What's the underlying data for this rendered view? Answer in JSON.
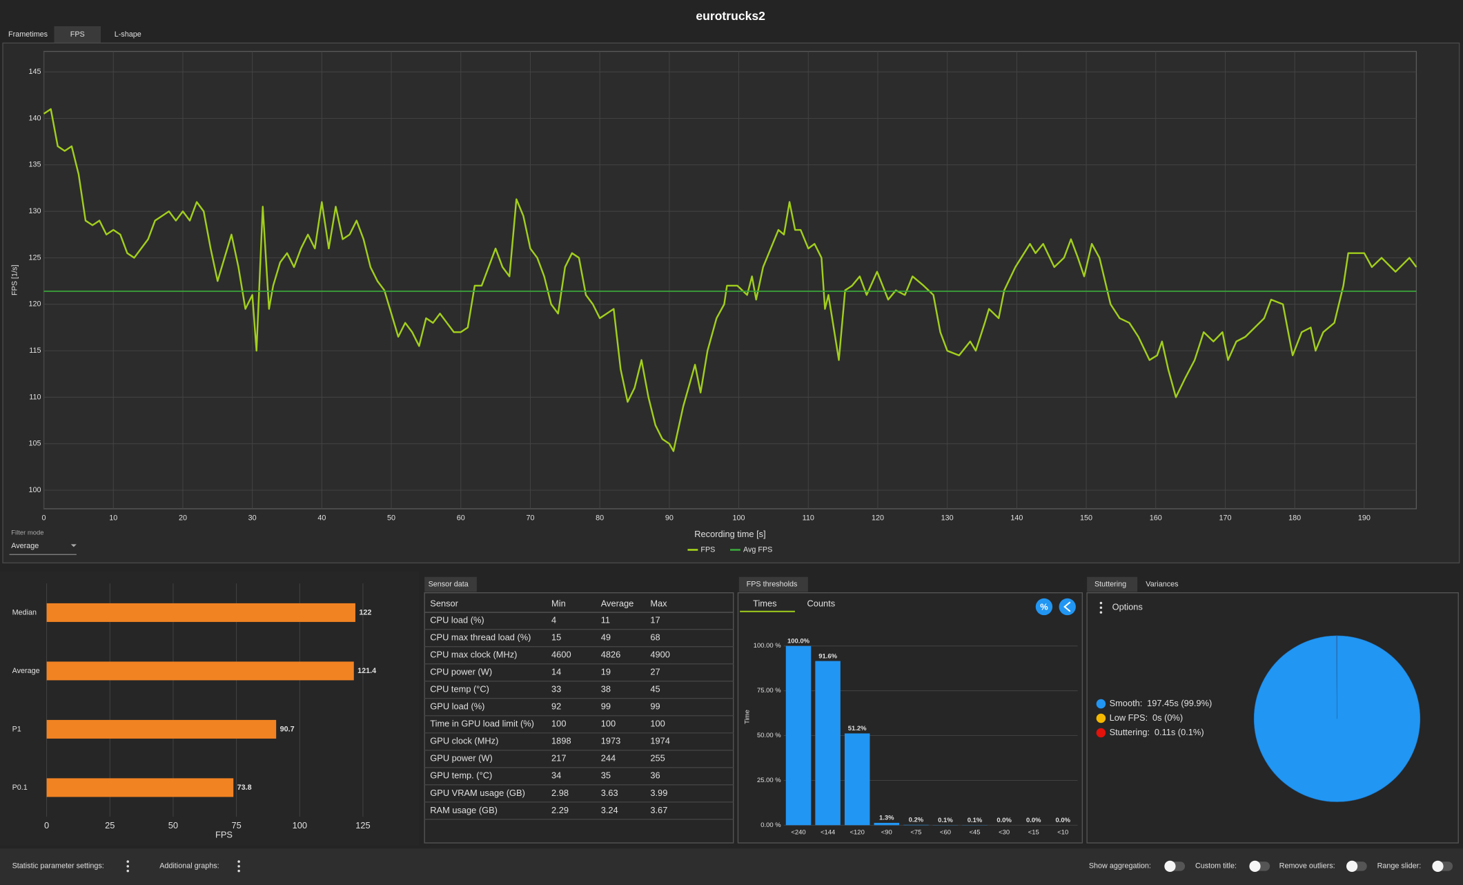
{
  "app": {
    "title": "eurotrucks2",
    "tabs": [
      "Frametimes",
      "FPS",
      "L-shape"
    ],
    "filter_label": "Filter mode",
    "filter_value": "Average",
    "panels": {
      "sensor": "Sensor data",
      "thresholds": "FPS thresholds",
      "stuttering": "Stuttering",
      "variances": "Variances",
      "options": "Options",
      "times": "Times",
      "counts": "Counts",
      "percent": "%"
    },
    "footer": [
      "Statistic parameter settings:",
      "Additional graphs:",
      "Show aggregation:",
      "Custom title:",
      "Remove outliers:",
      "Range slider:"
    ]
  },
  "chart_data": [
    {
      "type": "line",
      "xlabel": "Recording time [s]",
      "ylabel": "FPS [1/s]",
      "x": [
        0,
        1,
        2,
        3,
        4,
        5,
        6,
        7,
        8,
        9,
        10,
        11,
        12,
        13,
        14,
        15,
        16,
        17,
        18,
        19,
        20,
        21,
        22,
        23,
        24,
        25,
        26,
        27,
        28,
        29,
        30,
        30.6,
        31.5,
        32.4,
        33,
        34,
        35,
        36,
        37,
        38,
        39,
        40,
        41,
        42,
        43,
        44,
        45,
        46,
        47,
        48,
        49,
        50,
        51,
        52,
        53,
        54,
        55,
        56,
        57,
        58,
        59,
        60,
        61,
        62,
        63,
        64,
        65,
        66,
        67,
        68,
        69,
        70,
        71,
        72,
        73,
        74,
        75,
        76,
        77,
        78,
        79,
        80,
        81,
        82,
        83,
        84,
        85,
        86,
        87,
        88,
        89,
        90,
        90.6,
        92,
        93.7,
        94.5,
        95.5,
        96.8,
        97.9,
        98.3,
        99.8,
        101.2,
        101.9,
        102.5,
        103.5,
        104.6,
        105.7,
        106.5,
        107.3,
        108.1,
        108.9,
        110,
        110.9,
        111.9,
        112.4,
        112.9,
        114.4,
        115.3,
        116.3,
        117.4,
        118.4,
        119.9,
        121.5,
        122.6,
        123.9,
        125,
        126.6,
        128,
        129,
        130,
        131.7,
        133.3,
        134.1,
        135.4,
        136,
        137.4,
        138.2,
        139.8,
        141.9,
        142.7,
        143.8,
        145.4,
        146.8,
        147.8,
        148.8,
        149.7,
        150.8,
        151.9,
        153.5,
        154.8,
        156.2,
        157.5,
        159.1,
        160.2,
        160.9,
        161.8,
        162.9,
        164.2,
        165.6,
        166.9,
        168.3,
        169.6,
        170.4,
        171.6,
        172.9,
        175.6,
        176.6,
        178.3,
        179.7,
        181,
        182.3,
        183,
        184.1,
        185.7,
        187,
        187.7,
        190,
        191.1,
        192.5,
        194.5,
        196.5,
        197.5
      ],
      "series": [
        {
          "name": "FPS",
          "color": "#a2cf1c",
          "values": [
            140.5,
            141,
            137,
            136.5,
            137,
            134,
            129,
            128.5,
            129,
            127.5,
            128,
            127.5,
            125.5,
            125,
            126,
            127,
            129,
            129.5,
            130,
            129,
            130,
            129,
            131,
            130,
            126,
            122.5,
            125,
            127.5,
            124,
            119.5,
            121,
            115,
            130.5,
            119.5,
            122,
            124.5,
            125.5,
            124,
            126,
            127.5,
            126,
            131,
            126,
            130.5,
            127,
            127.5,
            129,
            127,
            124,
            122.5,
            121.5,
            119,
            116.5,
            118,
            117,
            115.5,
            118.5,
            118,
            119,
            118,
            117,
            117,
            117.5,
            122,
            122,
            124,
            126,
            124,
            123,
            131.3,
            129.5,
            126,
            125,
            123,
            120,
            119,
            124,
            125.5,
            125,
            121,
            120,
            118.5,
            119,
            119.5,
            113,
            109.5,
            111,
            114,
            110,
            107,
            105.5,
            105,
            104.2,
            109,
            113.5,
            110.5,
            115,
            118.5,
            120,
            122,
            122,
            121,
            123,
            120.5,
            124,
            126,
            128,
            127.5,
            131,
            128,
            128,
            126,
            126.5,
            125,
            119.5,
            121,
            114,
            121.5,
            122,
            123,
            121,
            123.5,
            120.5,
            121.5,
            121,
            123,
            122,
            121,
            117,
            115,
            114.5,
            116,
            115,
            118,
            119.5,
            118.5,
            121.5,
            124,
            126.5,
            125.5,
            126.5,
            124,
            125,
            127,
            125,
            123,
            126.5,
            125,
            120,
            118.5,
            118,
            116.5,
            114,
            114.5,
            116,
            113,
            110,
            112,
            114,
            117,
            116,
            117,
            114,
            116,
            116.5,
            118.5,
            120.5,
            120,
            114.5,
            117,
            117.5,
            115,
            117,
            118,
            122,
            125.5,
            125.5,
            124,
            125,
            123.5,
            125,
            124
          ]
        },
        {
          "name": "Avg FPS",
          "color": "#3aa53a",
          "value": 121.4
        }
      ],
      "xlim": [
        0,
        197.5
      ],
      "ylim": [
        98,
        147.2
      ],
      "xticks": [
        0,
        10,
        20,
        30,
        40,
        50,
        60,
        70,
        80,
        90,
        100,
        110,
        120,
        130,
        140,
        150,
        160,
        170,
        180,
        190
      ],
      "yticks": [
        100,
        105,
        110,
        115,
        120,
        125,
        130,
        135,
        140,
        145
      ],
      "grid": true,
      "legend": "bottom"
    },
    {
      "type": "hbar",
      "xlabel": "FPS",
      "categories": [
        "Median",
        "Average",
        "P1",
        "P0.1"
      ],
      "values": [
        122,
        121.4,
        90.7,
        73.8
      ],
      "color": "#f28322",
      "xlim": [
        0,
        125
      ],
      "xticks": [
        0,
        25,
        50,
        75,
        100,
        125
      ],
      "grid": true
    },
    {
      "type": "bar",
      "ylabel": "Time",
      "categories": [
        "<240",
        "<144",
        "<120",
        "<90",
        "<75",
        "<60",
        "<45",
        "<30",
        "<15",
        "<10"
      ],
      "values": [
        100,
        91.6,
        51.2,
        1.3,
        0.2,
        0.1,
        0.1,
        0,
        0,
        0
      ],
      "value_labels": [
        "100.0%",
        "91.6%",
        "51.2%",
        "1.3%",
        "0.2%",
        "0.1%",
        "0.1%",
        "0.0%",
        "0.0%",
        "0.0%"
      ],
      "color": "#2196f3",
      "ylim": [
        0,
        100
      ],
      "yticks": [
        {
          "value": 0,
          "label": "0.00 %"
        },
        {
          "value": 25,
          "label": "25.00 %"
        },
        {
          "value": 50,
          "label": "50.00 %"
        },
        {
          "value": 75,
          "label": "75.00 %"
        },
        {
          "value": 100,
          "label": "100.00 %"
        }
      ],
      "grid": true
    },
    {
      "type": "pie",
      "categories": [
        "Smooth:",
        "Low FPS:",
        "Stuttering:"
      ],
      "values": [
        99.9,
        0,
        0.1
      ],
      "value_labels": [
        "197.45s (99.9%)",
        "0s (0%)",
        "0.11s (0.1%)"
      ],
      "colors": [
        "#2196f3",
        "#f5b800",
        "#e3120b"
      ],
      "legend": "left"
    }
  ],
  "sensor_table": {
    "header": [
      "Sensor",
      "Min",
      "Average",
      "Max"
    ],
    "rows": [
      [
        "CPU load (%)",
        4,
        11,
        17
      ],
      [
        "CPU max thread load (%)",
        15,
        49,
        68
      ],
      [
        "CPU max clock (MHz)",
        4600,
        4826,
        4900
      ],
      [
        "CPU power (W)",
        14,
        19,
        27
      ],
      [
        "CPU temp (°C)",
        33,
        38,
        45
      ],
      [
        "GPU load (%)",
        92,
        99,
        99
      ],
      [
        "Time in GPU load limit (%)",
        100,
        100,
        100
      ],
      [
        "GPU clock (MHz)",
        1898,
        1973,
        1974
      ],
      [
        "GPU power (W)",
        217,
        244,
        255
      ],
      [
        "GPU temp. (°C)",
        34,
        35,
        36
      ],
      [
        "GPU VRAM usage (GB)",
        2.98,
        3.63,
        3.99
      ],
      [
        "RAM usage (GB)",
        2.29,
        3.24,
        3.67
      ]
    ]
  }
}
